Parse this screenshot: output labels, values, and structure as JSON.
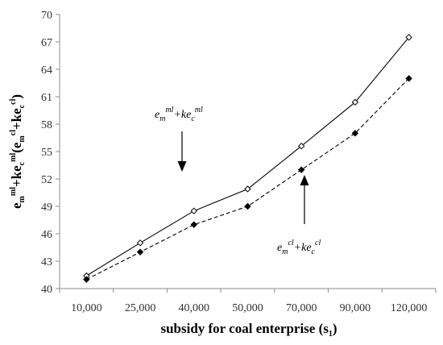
{
  "chart_data": {
    "type": "line",
    "categories": [
      "10,000",
      "25,000",
      "40,000",
      "50,000",
      "70,000",
      "90,000",
      "120,000"
    ],
    "series": [
      {
        "label_main": "e",
        "label_sub1": "m",
        "label_sup1": "ml",
        "label_mid": "+ke",
        "label_sub2": "c",
        "label_sup2": "ml",
        "values": [
          41.4,
          45.0,
          48.5,
          50.9,
          55.6,
          60.4,
          67.5
        ],
        "line": "solid",
        "marker": "open-diamond",
        "color": "#000000"
      },
      {
        "label_main": "e",
        "label_sub1": "m",
        "label_sup1": "cl",
        "label_mid": "+ke",
        "label_sub2": "c",
        "label_sup2": "cl",
        "values": [
          41.0,
          44.0,
          47.0,
          49.0,
          53.0,
          57.0,
          63.0
        ],
        "line": "dashed",
        "marker": "filled-diamond",
        "color": "#000000"
      }
    ],
    "yticks": [
      "40",
      "43",
      "46",
      "49",
      "52",
      "55",
      "58",
      "61",
      "64",
      "67",
      "70"
    ],
    "ylim": [
      40,
      70
    ],
    "xlabel": {
      "text": "subsidy for coal enterprise (s",
      "sub": "1",
      "close": ")"
    },
    "ylabel": {
      "e1": "e",
      "s1": "m",
      "p1": "ml",
      "mid1": "+ke",
      "s2": "c",
      "p2": "ml",
      "open": "(e",
      "s3": "m",
      "p3": "cl",
      "mid2": "+ke",
      "s4": "c",
      "p4": "cl",
      "close": ")"
    },
    "grid": false,
    "legend": "none"
  }
}
